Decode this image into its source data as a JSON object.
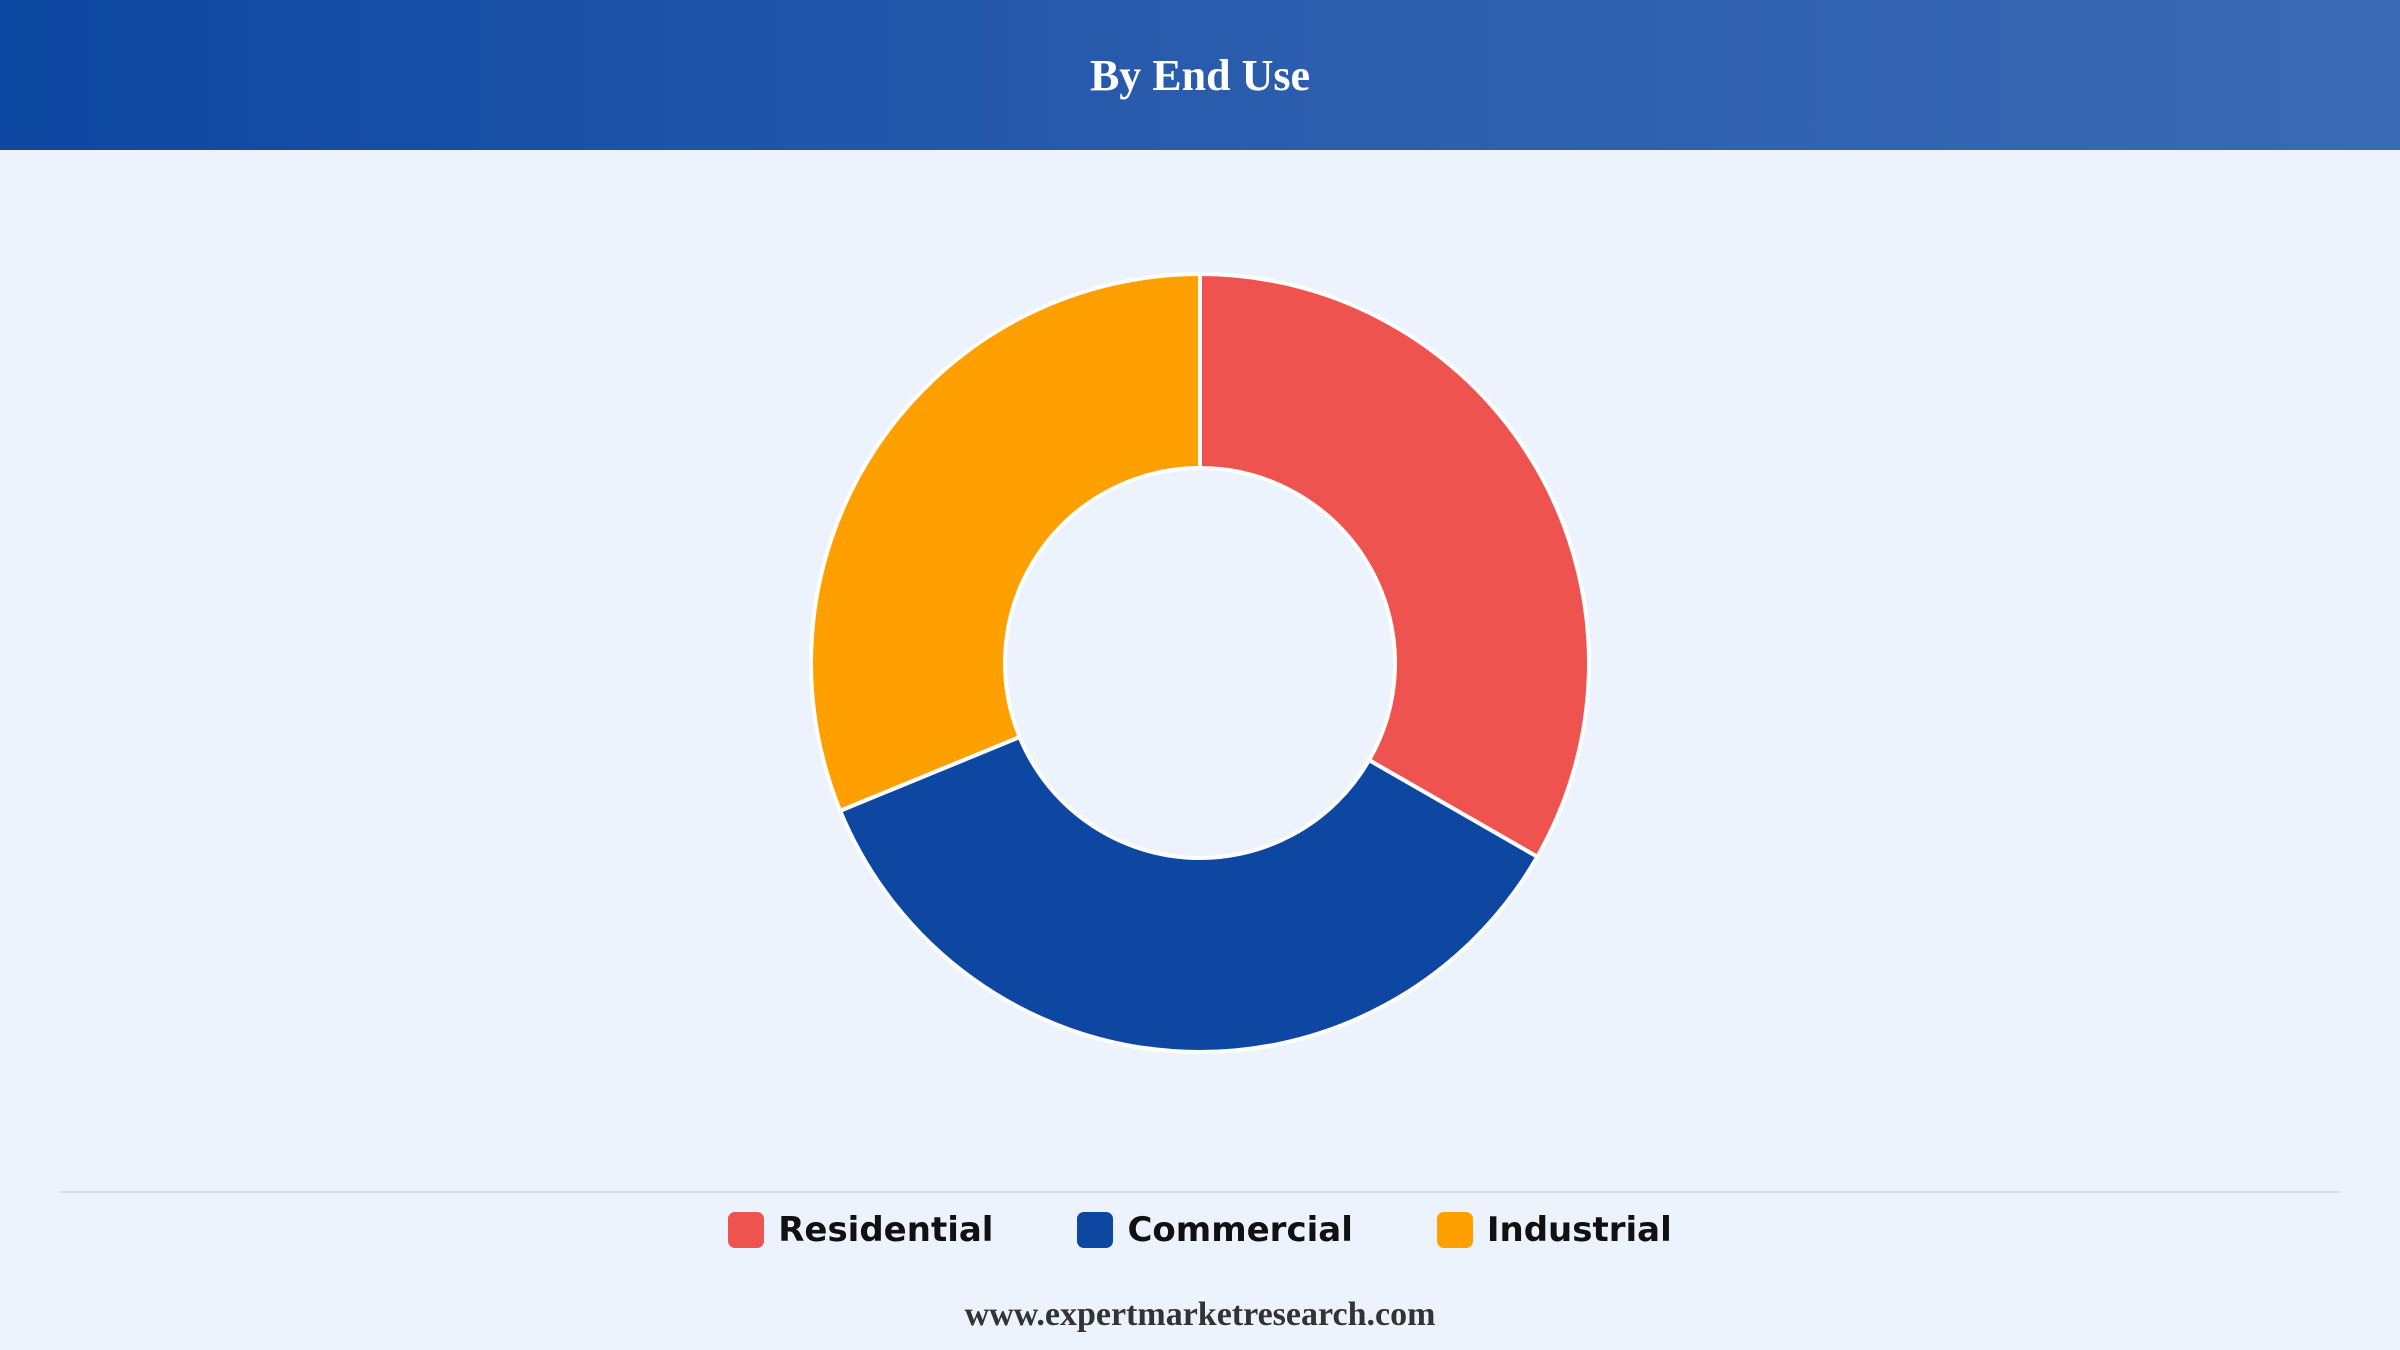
{
  "header": {
    "title": "By End Use"
  },
  "chart_data": {
    "type": "pie",
    "variant": "donut",
    "categories": [
      "Residential",
      "Commercial",
      "Industrial"
    ],
    "values": [
      33.3,
      35.5,
      31.2
    ],
    "colors": [
      "#ef5350",
      "#0d47a1",
      "#ffa000"
    ],
    "title": "By End Use",
    "legend": "bottom-center",
    "start_angle": "top",
    "direction": "clockwise"
  },
  "legend": {
    "items": [
      {
        "label": "Residential",
        "color": "#ef5350"
      },
      {
        "label": "Commercial",
        "color": "#0d47a1"
      },
      {
        "label": "Industrial",
        "color": "#ffa000"
      }
    ]
  },
  "footer": {
    "source": "www.expertmarketresearch.com"
  }
}
